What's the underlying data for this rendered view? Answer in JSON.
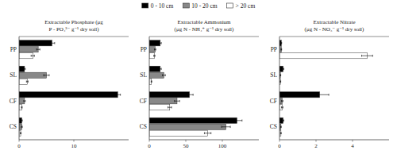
{
  "chart_data": [
    {
      "type": "bar",
      "orientation": "horizontal",
      "legend": "top",
      "grid": false,
      "title": "Extractable Phosphate (μg\nP - PO₄³⁻ g⁻¹ dry soil)",
      "categories": [
        "PP",
        "SL",
        "CF",
        "CS"
      ],
      "xlim": [
        0,
        20
      ],
      "xticks": [
        0,
        10
      ],
      "series": [
        {
          "name": "0 - 10 cm",
          "color": "#000000",
          "values": [
            6.0,
            1.0,
            18.0,
            0.5
          ],
          "errors": [
            0.5,
            0.15,
            0.5,
            0.1
          ]
        },
        {
          "name": "10 - 20 cm",
          "color": "#888888",
          "values": [
            3.5,
            5.0,
            1.0,
            0.5
          ],
          "errors": [
            0.3,
            0.5,
            0.15,
            0.1
          ]
        },
        {
          "name": "> 20 cm",
          "color": "#ffffff",
          "values": [
            2.5,
            1.5,
            0.5,
            0.3
          ],
          "errors": [
            0.3,
            0.15,
            0.08,
            0.08
          ]
        }
      ]
    },
    {
      "type": "bar",
      "orientation": "horizontal",
      "grid": false,
      "title": "Extractable Ammonium\n(μg N - NH₄⁺ g⁻¹ dry soil)",
      "categories": [
        "PP",
        "SL",
        "CF",
        "CS"
      ],
      "xlim": [
        0,
        150
      ],
      "xticks": [
        0,
        50,
        100
      ],
      "series": [
        {
          "name": "0 - 10 cm",
          "color": "#000000",
          "values": [
            15.0,
            15.0,
            55.0,
            120.0
          ],
          "errors": [
            1.5,
            1.5,
            5.0,
            7.0
          ]
        },
        {
          "name": "10 - 20 cm",
          "color": "#888888",
          "values": [
            8.0,
            20.0,
            38.0,
            105.0
          ],
          "errors": [
            1.0,
            2.0,
            3.5,
            6.0
          ]
        },
        {
          "name": "> 20 cm",
          "color": "#ffffff",
          "values": [
            7.0,
            3.0,
            28.0,
            80.0
          ],
          "errors": [
            0.8,
            0.5,
            2.5,
            4.5
          ]
        }
      ]
    },
    {
      "type": "bar",
      "orientation": "horizontal",
      "grid": false,
      "title": "Extractable Nitrate\n(μg N - NO₃⁻ g⁻¹ dry soil)",
      "categories": [
        "PP",
        "SL",
        "CF",
        "CS"
      ],
      "xlim": [
        0,
        6
      ],
      "xticks": [
        0,
        2,
        4
      ],
      "series": [
        {
          "name": "0 - 10 cm",
          "color": "#000000",
          "values": [
            0.1,
            0.2,
            2.2,
            0.2
          ],
          "errors": [
            0.02,
            0.04,
            0.5,
            0.04
          ]
        },
        {
          "name": "10 - 20 cm",
          "color": "#888888",
          "values": [
            0.1,
            0.05,
            0.15,
            0.08
          ],
          "errors": [
            0.02,
            0.02,
            0.04,
            0.02
          ]
        },
        {
          "name": "> 20 cm",
          "color": "#ffffff",
          "values": [
            4.8,
            0.05,
            0.15,
            0.08
          ],
          "errors": [
            0.3,
            0.02,
            0.04,
            0.02
          ]
        }
      ]
    }
  ]
}
